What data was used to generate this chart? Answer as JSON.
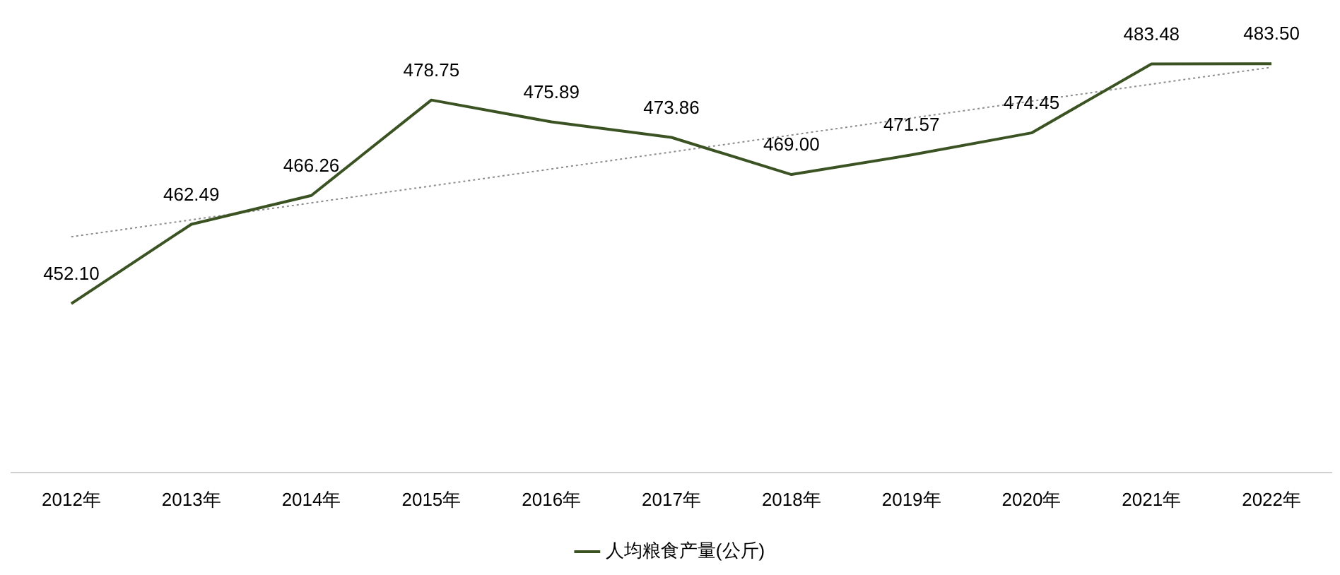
{
  "chart_data": {
    "type": "line",
    "categories": [
      "2012年",
      "2013年",
      "2014年",
      "2015年",
      "2016年",
      "2017年",
      "2018年",
      "2019年",
      "2020年",
      "2021年",
      "2022年"
    ],
    "series": [
      {
        "name": "人均粮食产量(公斤)",
        "color": "#3b5323",
        "values": [
          452.1,
          462.49,
          466.26,
          478.75,
          475.89,
          473.86,
          469.0,
          471.57,
          474.45,
          483.48,
          483.5
        ],
        "value_labels": [
          "452.10",
          "462.49",
          "466.26",
          "478.75",
          "475.89",
          "473.86",
          "469.00",
          "471.57",
          "474.45",
          "483.48",
          "483.50"
        ]
      },
      {
        "type": "line",
        "color": "#8c8c8c",
        "line_style": "dotted",
        "x": [
          "2012年",
          "2022年"
        ],
        "values": [
          460.85,
          483.05
        ]
      }
    ],
    "tick_labels": "x",
    "grid": false,
    "legend": "bottom",
    "marker": "none",
    "line_style": "solid"
  }
}
